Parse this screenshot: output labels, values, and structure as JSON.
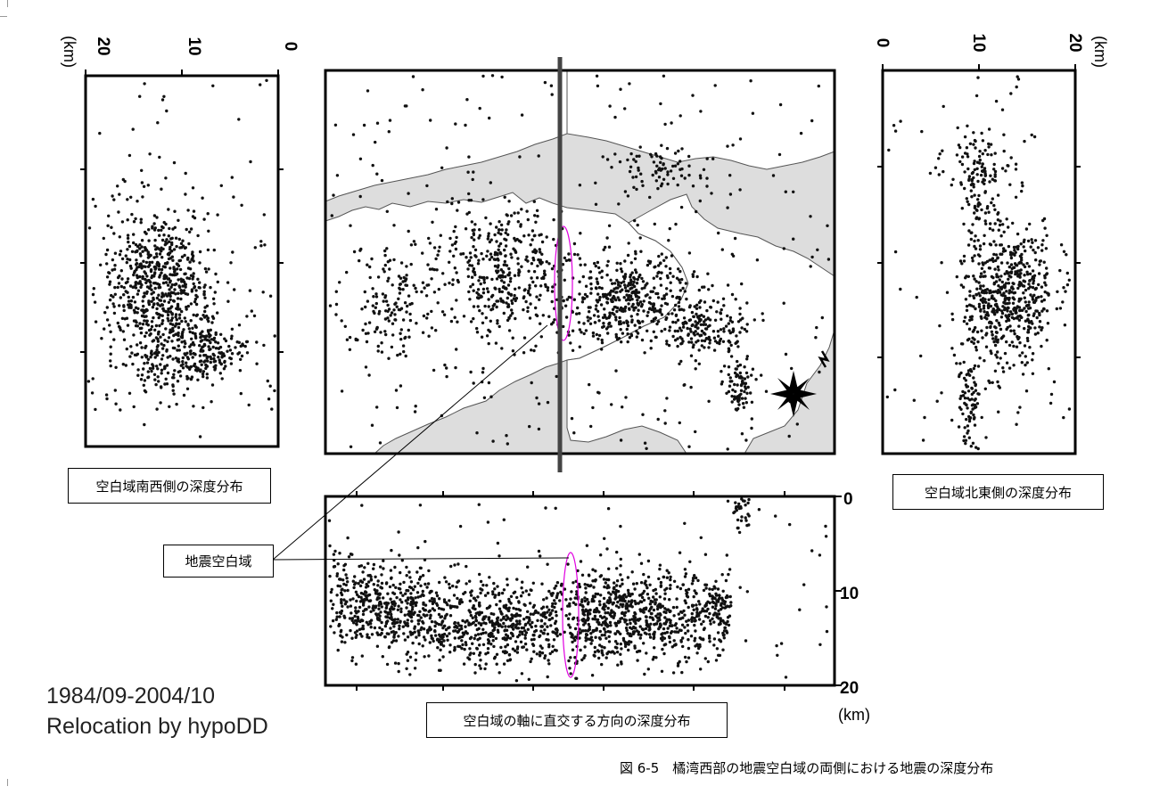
{
  "figure": {
    "caption": "図 6-5　橘湾西部の地震空白域の両側における地震の深度分布",
    "stamp_line1": "1984/09-2004/10",
    "stamp_line2": "Relocation by hypoDD"
  },
  "labels": {
    "sw_depth": "空白域南西側の深度分布",
    "ne_depth": "空白域北東側の深度分布",
    "seismic_gap": "地震空白域",
    "perp_depth": "空白域の軸に直交する方向の深度分布"
  },
  "colors": {
    "event": "#111111",
    "land": "#ffffff",
    "sea": "#dddddd",
    "gap_outline": "#e000e0",
    "profile_line": "#444444"
  },
  "chart_data": [
    {
      "type": "scatter",
      "panel": "map",
      "title": "",
      "profile_line": "vertical line through the map at the seismic gap",
      "gap_marker": "magenta ellipse",
      "clusters": [
        {
          "area": "west",
          "density": "scattered"
        },
        {
          "area": "center-west",
          "density": "dense"
        },
        {
          "area": "center-east",
          "density": "dense"
        },
        {
          "area": "east",
          "density": "moderate"
        }
      ]
    },
    {
      "type": "scatter",
      "panel": "southwest-depth",
      "xlabel": "(km)",
      "x_ticks": [
        20,
        10,
        0
      ],
      "xlim": [
        20,
        0
      ],
      "y_axis": "along-axis distance",
      "depth_concentration_km": [
        8,
        15
      ]
    },
    {
      "type": "scatter",
      "panel": "northeast-depth",
      "xlabel": "(km)",
      "x_ticks": [
        0,
        10,
        20
      ],
      "xlim": [
        0,
        20
      ],
      "y_axis": "along-axis distance",
      "depth_concentration_km": [
        8,
        15
      ]
    },
    {
      "type": "scatter",
      "panel": "perpendicular-depth",
      "ylabel": "(km)",
      "y_ticks": [
        0,
        10,
        20
      ],
      "ylim": [
        0,
        20
      ],
      "gap_depth_range_km": [
        6,
        19
      ],
      "depth_concentration_km": [
        9,
        16
      ]
    }
  ]
}
